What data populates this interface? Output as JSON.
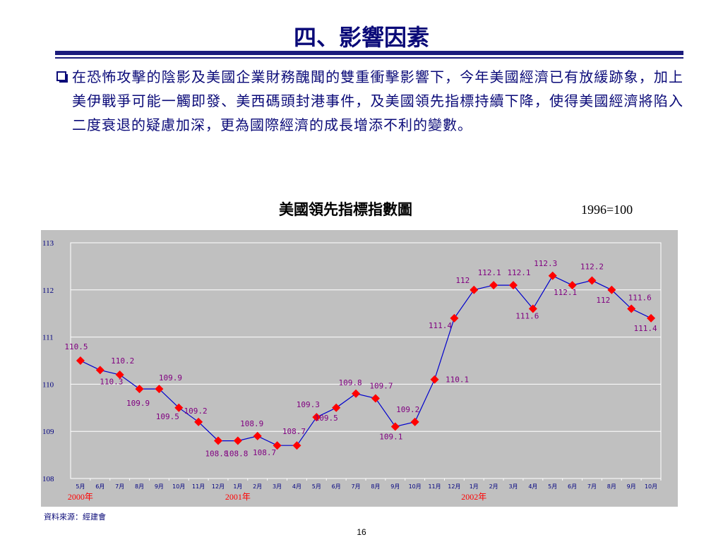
{
  "slide": {
    "title": "四、影響因素",
    "paragraph": "在恐怖攻擊的陰影及美國企業財務醜聞的雙重衝擊影響下，今年美國經濟已有放緩跡象，加上美伊戰爭可能一觸即發、美西碼頭封港事件，及美國領先指標持續下降，使得美國經濟將陷入二度衰退的疑慮加深，更為國際經濟的成長增添不利的變數。",
    "source": "資料來源：經建會",
    "page_number": "16"
  },
  "chart_data": {
    "type": "line",
    "title": "美國領先指標指數圖",
    "subtitle": "1996=100",
    "categories": [
      "5月",
      "6月",
      "7月",
      "8月",
      "9月",
      "10月",
      "11月",
      "12月",
      "1月",
      "2月",
      "3月",
      "4月",
      "5月",
      "6月",
      "7月",
      "8月",
      "9月",
      "10月",
      "11月",
      "12月",
      "1月",
      "2月",
      "3月",
      "4月",
      "5月",
      "6月",
      "7月",
      "8月",
      "9月",
      "10月"
    ],
    "year_labels": [
      {
        "label": "2000年",
        "index": 0
      },
      {
        "label": "2001年",
        "index": 8
      },
      {
        "label": "2002年",
        "index": 20
      }
    ],
    "values": [
      110.5,
      110.3,
      110.2,
      109.9,
      109.9,
      109.5,
      109.2,
      108.8,
      108.8,
      108.9,
      108.7,
      108.7,
      109.3,
      109.5,
      109.8,
      109.7,
      109.1,
      109.2,
      110.1,
      111.4,
      112,
      112.1,
      112.1,
      111.6,
      112.3,
      112.1,
      112.2,
      112,
      111.6,
      111.4
    ],
    "data_labels": [
      "110.5",
      "110.3",
      "110.2",
      "109.9",
      "109.9",
      "109.5",
      "109.2",
      "108.8",
      "108.8",
      "108.9",
      "108.7",
      "108.7",
      "109.3",
      "109.5",
      "109.8",
      "109.7",
      "109.1",
      "109.2",
      "110.1",
      "111.4",
      "112",
      "112.1",
      "112.1",
      "111.6",
      "112.3",
      "112.1",
      "112.2",
      "112",
      "111.6",
      "111.4"
    ],
    "y_ticks": [
      "108",
      "109",
      "110",
      "111",
      "112",
      "113"
    ],
    "ylim": [
      108,
      113
    ],
    "grid": true,
    "colors": {
      "plot_bg": "#c0c0c0",
      "line": "#0000cc",
      "marker": "#ff0000",
      "data_label": "#800080",
      "axis_text": "#000080",
      "year_text": "#ff0000"
    }
  }
}
